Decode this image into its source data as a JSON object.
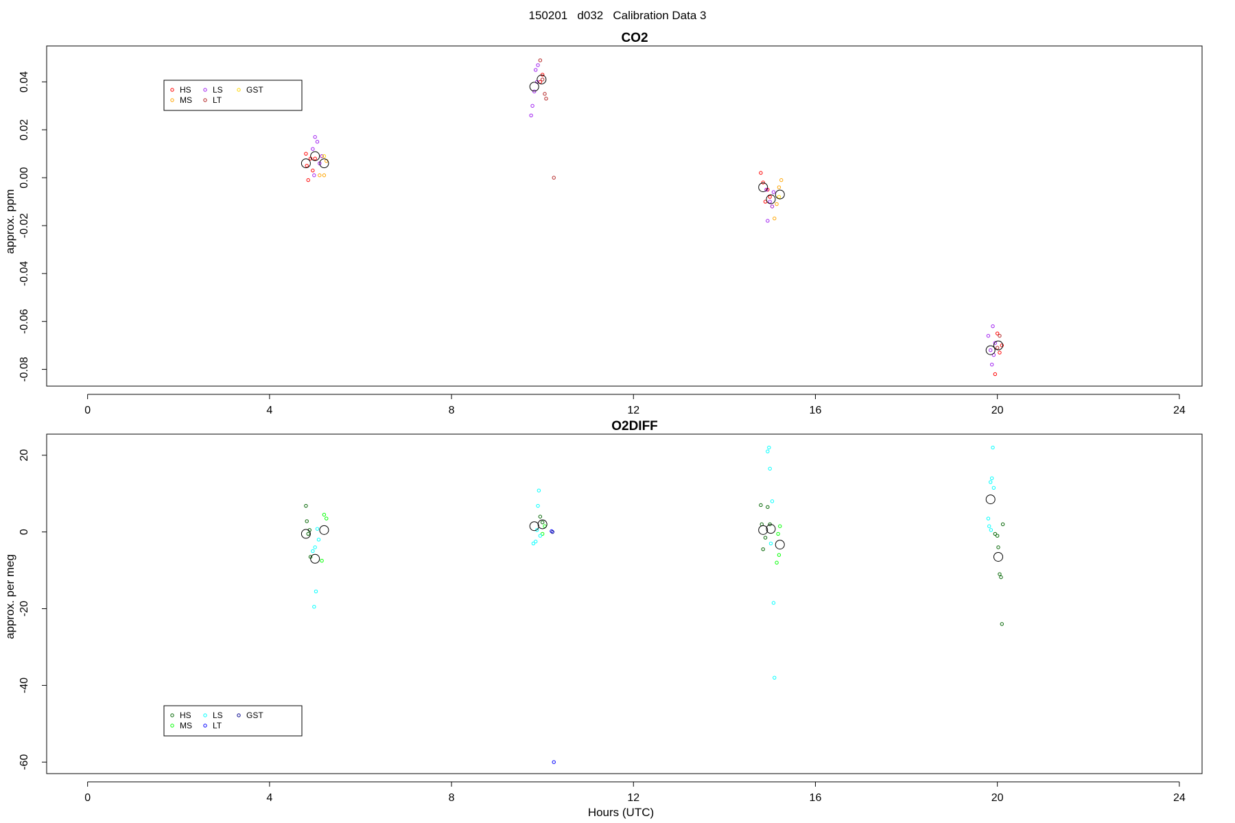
{
  "figure": {
    "suptitle": "150201   d032   Calibration Data 3",
    "xlabel": "Hours (UTC)"
  },
  "chart_data": [
    {
      "type": "scatter",
      "title": "CO2",
      "xlabel": "",
      "ylabel": "approx. ppm",
      "xlim": [
        -0.9,
        24.5
      ],
      "ylim": [
        -0.087,
        0.055
      ],
      "xticks": [
        0,
        4,
        8,
        12,
        16,
        20,
        24
      ],
      "yticks": [
        -0.08,
        -0.06,
        -0.04,
        -0.02,
        0.0,
        0.02,
        0.04
      ],
      "ytick_labels": [
        "-0.08",
        "-0.06",
        "-0.04",
        "-0.02",
        "0.00",
        "0.02",
        "0.04"
      ],
      "grid": false,
      "legend": {
        "placement": "top-left",
        "entries": [
          {
            "label": "HS",
            "color": "#ff0000"
          },
          {
            "label": "MS",
            "color": "#ffa500"
          },
          {
            "label": "LS",
            "color": "#a020f0"
          },
          {
            "label": "LT",
            "color": "#b22222"
          },
          {
            "label": "GST",
            "color": "#ffd700"
          }
        ]
      },
      "series": [
        {
          "name": "HS",
          "color": "#ff0000",
          "points": [
            [
              4.8,
              0.01
            ],
            [
              4.82,
              0.005
            ],
            [
              4.85,
              -0.001
            ],
            [
              4.9,
              0.008
            ],
            [
              4.95,
              0.003
            ],
            [
              5.0,
              0.008
            ],
            [
              9.95,
              0.04
            ],
            [
              10.0,
              0.043
            ],
            [
              14.8,
              0.002
            ],
            [
              14.85,
              -0.002
            ],
            [
              14.9,
              -0.01
            ],
            [
              14.95,
              -0.005
            ],
            [
              15.0,
              -0.008
            ],
            [
              19.95,
              -0.082
            ],
            [
              20.0,
              -0.065
            ],
            [
              20.05,
              -0.073
            ],
            [
              20.1,
              -0.07
            ]
          ]
        },
        {
          "name": "MS",
          "color": "#ffa500",
          "points": [
            [
              5.1,
              0.001
            ],
            [
              5.15,
              0.009
            ],
            [
              5.2,
              0.001
            ],
            [
              5.25,
              0.007
            ],
            [
              15.05,
              -0.012
            ],
            [
              15.1,
              -0.017
            ],
            [
              15.15,
              -0.011
            ],
            [
              15.2,
              -0.004
            ],
            [
              15.25,
              -0.001
            ]
          ]
        },
        {
          "name": "LS",
          "color": "#a020f0",
          "points": [
            [
              4.95,
              0.012
            ],
            [
              5.0,
              0.017
            ],
            [
              5.05,
              0.015
            ],
            [
              5.1,
              0.006
            ],
            [
              5.15,
              0.009
            ],
            [
              4.98,
              0.001
            ],
            [
              9.75,
              0.026
            ],
            [
              9.78,
              0.03
            ],
            [
              9.82,
              0.036
            ],
            [
              9.85,
              0.045
            ],
            [
              9.9,
              0.047
            ],
            [
              9.88,
              0.04
            ],
            [
              14.92,
              -0.005
            ],
            [
              14.95,
              -0.018
            ],
            [
              15.0,
              -0.01
            ],
            [
              15.05,
              -0.012
            ],
            [
              15.08,
              -0.006
            ],
            [
              19.8,
              -0.066
            ],
            [
              19.85,
              -0.072
            ],
            [
              19.88,
              -0.078
            ],
            [
              19.9,
              -0.062
            ],
            [
              19.92,
              -0.074
            ],
            [
              19.95,
              -0.069
            ]
          ]
        },
        {
          "name": "LT",
          "color": "#b22222",
          "points": [
            [
              9.95,
              0.049
            ],
            [
              10.0,
              0.041
            ],
            [
              10.05,
              0.035
            ],
            [
              10.08,
              0.033
            ],
            [
              10.25,
              0.0
            ],
            [
              20.0,
              -0.071
            ],
            [
              20.05,
              -0.066
            ]
          ]
        },
        {
          "name": "GST",
          "color": "#ffd700",
          "points": [
            [
              5.2,
              0.009
            ],
            [
              15.2,
              -0.008
            ]
          ]
        }
      ],
      "means": [
        [
          4.8,
          0.006
        ],
        [
          5.0,
          0.009
        ],
        [
          5.2,
          0.006
        ],
        [
          9.82,
          0.038
        ],
        [
          9.98,
          0.041
        ],
        [
          14.85,
          -0.004
        ],
        [
          15.02,
          -0.009
        ],
        [
          15.22,
          -0.007
        ],
        [
          19.85,
          -0.072
        ],
        [
          20.02,
          -0.07
        ]
      ]
    },
    {
      "type": "scatter",
      "title": "O2DIFF",
      "xlabel": "Hours (UTC)",
      "ylabel": "approx. per meg",
      "xlim": [
        -0.9,
        24.5
      ],
      "ylim": [
        -63,
        25.5
      ],
      "xticks": [
        0,
        4,
        8,
        12,
        16,
        20,
        24
      ],
      "yticks": [
        -60,
        -40,
        -20,
        0,
        20
      ],
      "ytick_labels": [
        "-60",
        "-40",
        "-20",
        "0",
        "20"
      ],
      "grid": false,
      "legend": {
        "placement": "bottom-left",
        "entries": [
          {
            "label": "HS",
            "color": "#006400"
          },
          {
            "label": "MS",
            "color": "#00ff00"
          },
          {
            "label": "LS",
            "color": "#00ffff"
          },
          {
            "label": "LT",
            "color": "#0000ff"
          },
          {
            "label": "GST",
            "color": "#00008b"
          }
        ]
      },
      "series": [
        {
          "name": "HS",
          "color": "#006400",
          "points": [
            [
              4.8,
              6.8
            ],
            [
              4.82,
              2.8
            ],
            [
              4.85,
              -0.5
            ],
            [
              4.9,
              -6.5
            ],
            [
              4.88,
              0.5
            ],
            [
              9.95,
              4.0
            ],
            [
              10.0,
              2.5
            ],
            [
              14.8,
              7.0
            ],
            [
              14.85,
              -4.5
            ],
            [
              14.9,
              -1.5
            ],
            [
              14.95,
              6.5
            ],
            [
              15.0,
              2.0
            ],
            [
              14.82,
              2.0
            ],
            [
              20.0,
              -1.0
            ],
            [
              20.02,
              -4.0
            ],
            [
              20.05,
              -11.0
            ],
            [
              20.08,
              -11.8
            ],
            [
              20.1,
              -24.0
            ],
            [
              20.12,
              2.0
            ],
            [
              19.95,
              -0.5
            ]
          ]
        },
        {
          "name": "MS",
          "color": "#00ff00",
          "points": [
            [
              5.2,
              4.5
            ],
            [
              5.25,
              3.5
            ],
            [
              5.15,
              -7.5
            ],
            [
              10.05,
              1.5
            ],
            [
              10.0,
              -0.5
            ],
            [
              15.15,
              -8.0
            ],
            [
              15.2,
              -6.0
            ],
            [
              15.22,
              1.5
            ],
            [
              15.18,
              -0.5
            ]
          ]
        },
        {
          "name": "LS",
          "color": "#00ffff",
          "points": [
            [
              4.95,
              -5.0
            ],
            [
              5.0,
              -4.0
            ],
            [
              5.02,
              -15.5
            ],
            [
              4.98,
              -19.5
            ],
            [
              5.05,
              0.8
            ],
            [
              5.08,
              -2.0
            ],
            [
              9.8,
              -3.0
            ],
            [
              9.85,
              -2.5
            ],
            [
              9.9,
              6.8
            ],
            [
              9.92,
              10.8
            ],
            [
              9.88,
              0.5
            ],
            [
              9.95,
              -1.0
            ],
            [
              14.95,
              21.0
            ],
            [
              14.98,
              22.0
            ],
            [
              15.0,
              16.5
            ],
            [
              15.05,
              8.0
            ],
            [
              15.08,
              -18.5
            ],
            [
              15.1,
              -38.0
            ],
            [
              15.02,
              -3.0
            ],
            [
              19.8,
              3.5
            ],
            [
              19.82,
              1.5
            ],
            [
              19.85,
              13.0
            ],
            [
              19.88,
              14.0
            ],
            [
              19.9,
              22.0
            ],
            [
              19.92,
              11.5
            ],
            [
              19.86,
              0.5
            ]
          ]
        },
        {
          "name": "LT",
          "color": "#0000ff",
          "points": [
            [
              10.2,
              0.2
            ],
            [
              10.25,
              -60.0
            ]
          ]
        },
        {
          "name": "GST",
          "color": "#00008b",
          "points": [
            [
              10.22,
              0.0
            ]
          ]
        }
      ],
      "means": [
        [
          4.8,
          -0.5
        ],
        [
          5.0,
          -7.0
        ],
        [
          5.2,
          0.5
        ],
        [
          9.82,
          1.5
        ],
        [
          10.0,
          2.0
        ],
        [
          14.85,
          0.5
        ],
        [
          15.02,
          0.8
        ],
        [
          15.22,
          -3.3
        ],
        [
          19.85,
          8.5
        ],
        [
          20.02,
          -6.5
        ]
      ]
    }
  ]
}
